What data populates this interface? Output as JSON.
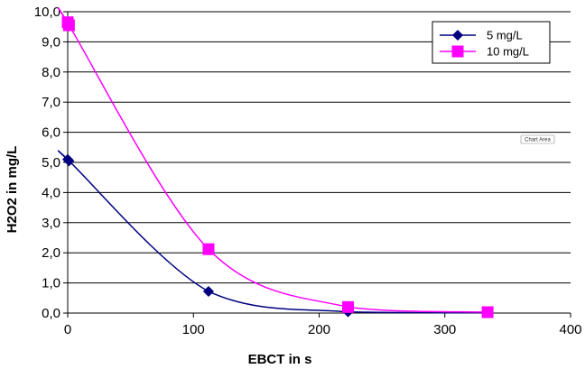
{
  "chart_data": {
    "type": "scatter",
    "xlabel": "EBCT  in s",
    "ylabel": "H2O2  in mg/L",
    "xlim": [
      0,
      400
    ],
    "ylim": [
      0,
      10
    ],
    "x_ticks": [
      "0",
      "100",
      "200",
      "300",
      "400"
    ],
    "y_ticks": [
      "0,0",
      "1,0",
      "2,0",
      "3,0",
      "4,0",
      "5,0",
      "6,0",
      "7,0",
      "8,0",
      "9,0",
      "10,0"
    ],
    "grid": "horizontal",
    "legend_position": "top-right",
    "series": [
      {
        "name": "5 mg/L",
        "marker": "diamond",
        "color": "#000080",
        "points": [
          [
            0,
            5.1
          ],
          [
            1,
            5.05
          ],
          [
            112,
            0.72
          ],
          [
            223,
            0.04
          ],
          [
            334,
            0.01
          ]
        ]
      },
      {
        "name": "10 mg/L",
        "marker": "square",
        "color": "#FF00FF",
        "points": [
          [
            0,
            9.65
          ],
          [
            1,
            9.55
          ],
          [
            112,
            2.12
          ],
          [
            223,
            0.2
          ],
          [
            334,
            0.03
          ]
        ]
      }
    ]
  },
  "tooltip": "Chart Area"
}
